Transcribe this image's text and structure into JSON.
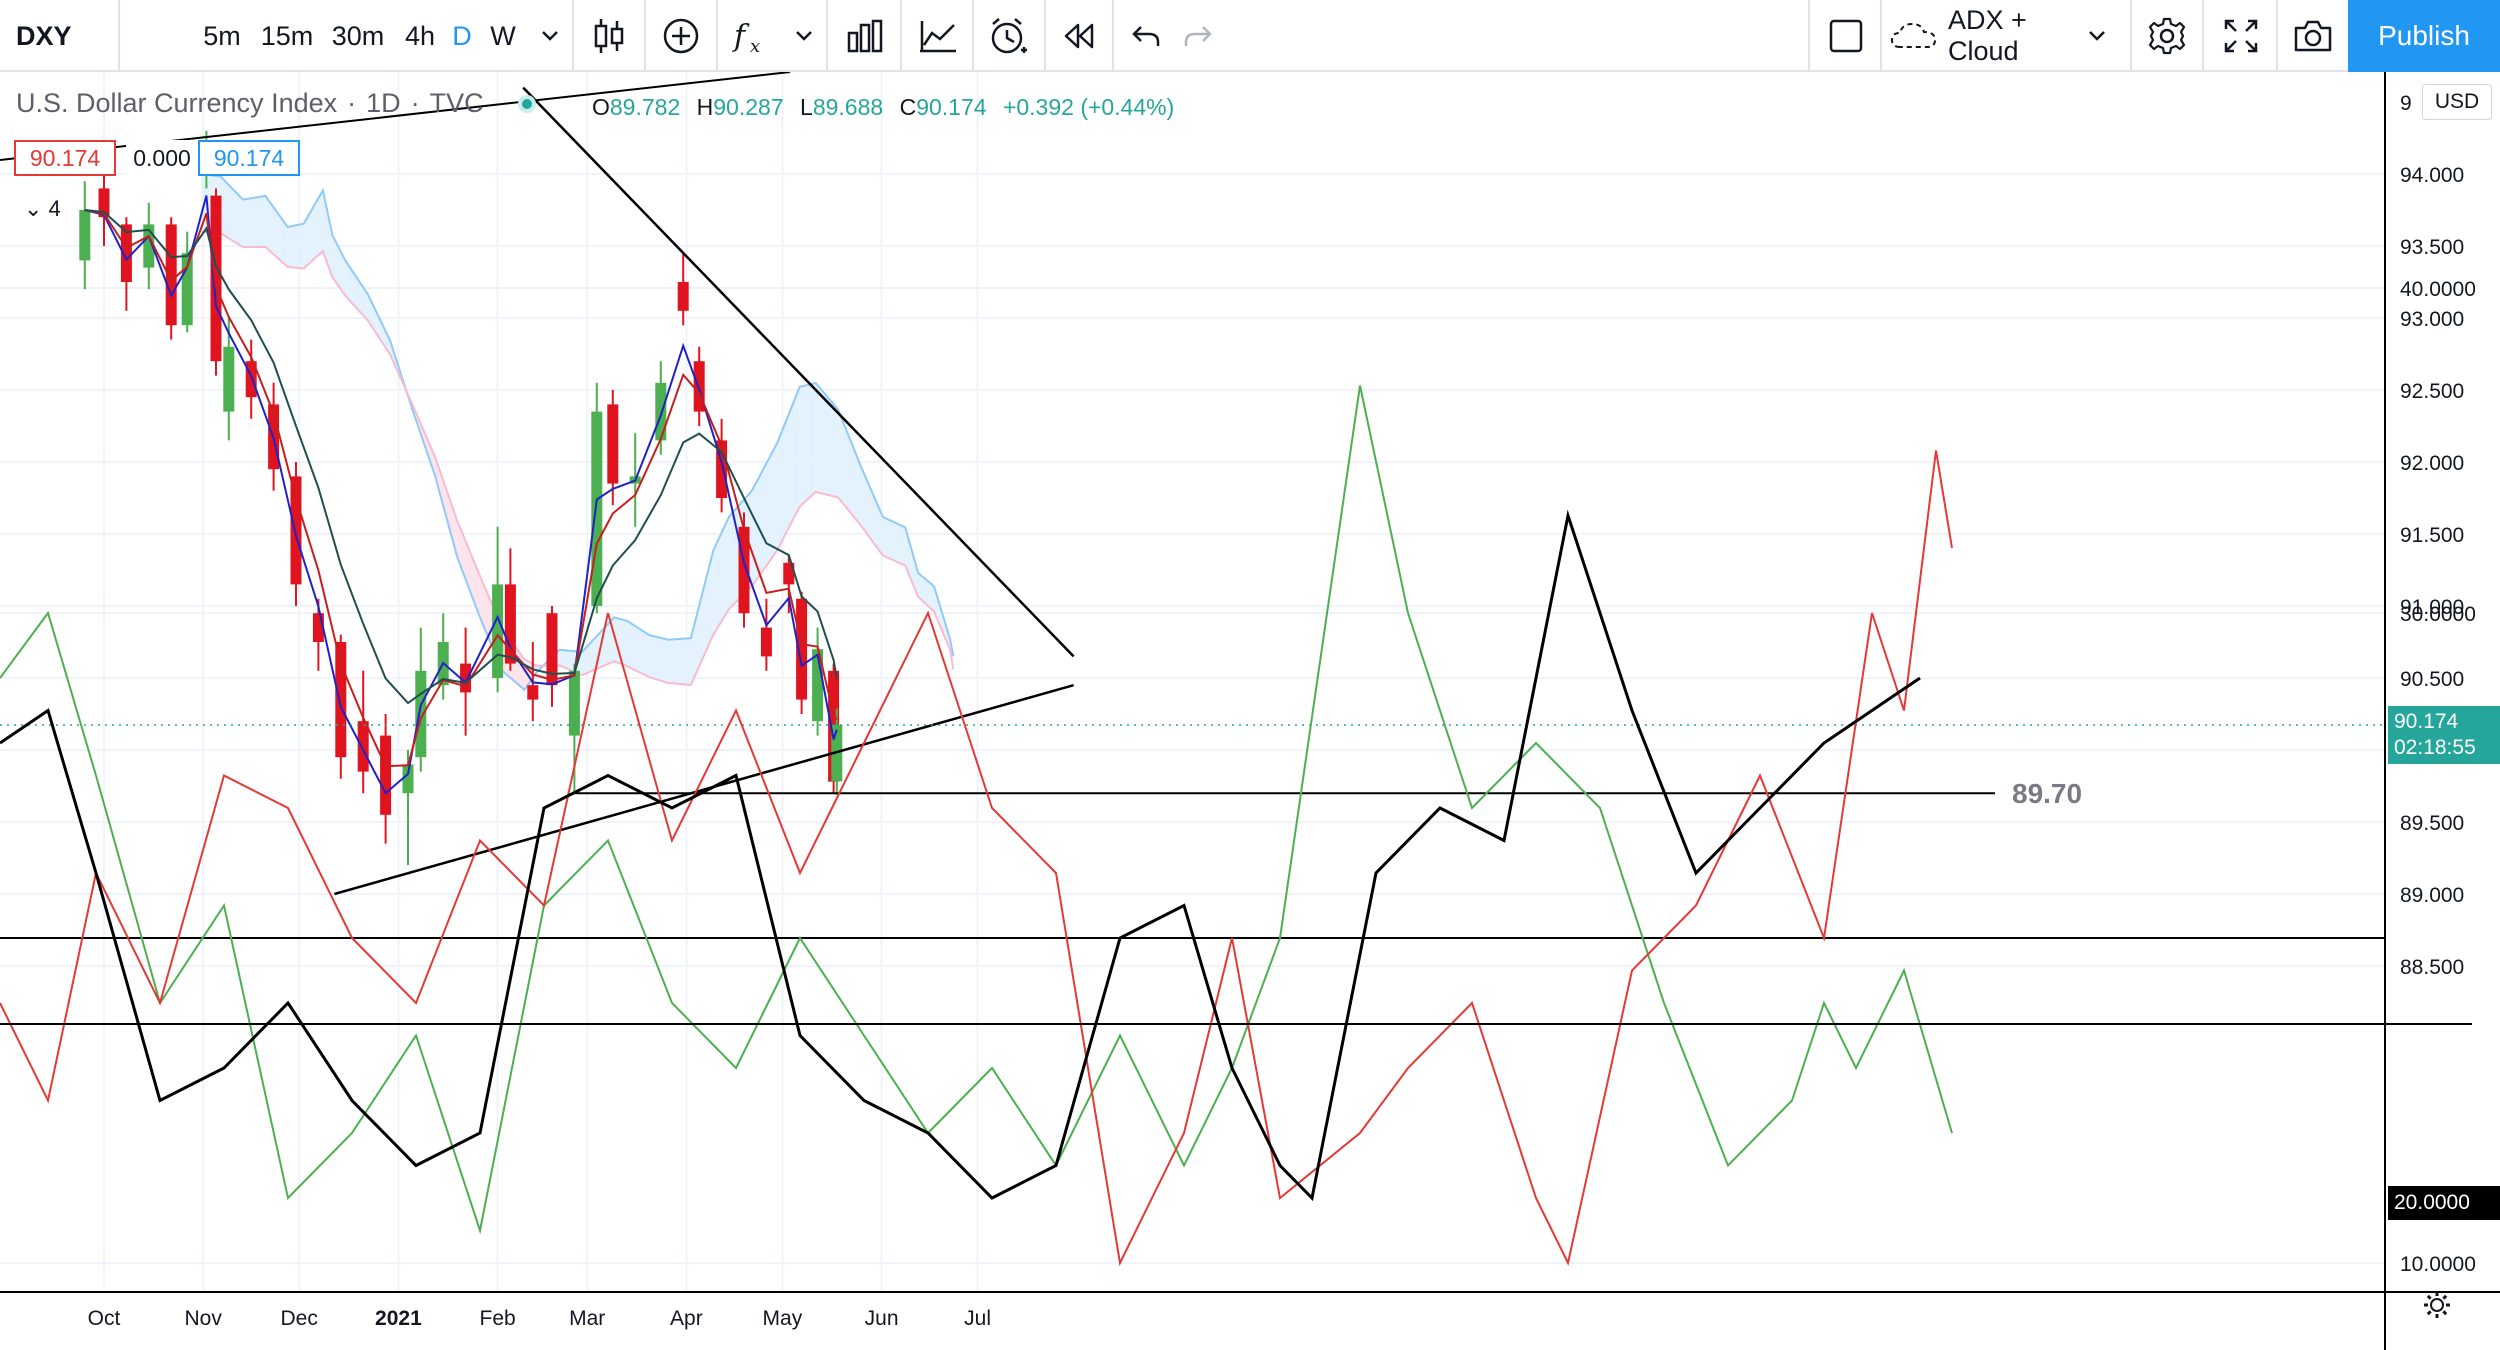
{
  "toolbar": {
    "symbol": "DXY",
    "intervals": [
      "5m",
      "15m",
      "30m",
      "4h",
      "D",
      "W"
    ],
    "active_interval": "D",
    "indicator_template": "ADX + Cloud",
    "publish_label": "Publish",
    "icons": [
      "interval-dropdown-icon",
      "candles-icon",
      "compare-add-icon",
      "indicators-fx-icon",
      "fx-dropdown-icon",
      "bar-chart-icon",
      "line-chart-icon",
      "alert-clock-icon",
      "replay-icon",
      "undo-icon",
      "redo-icon",
      "square-layout-icon",
      "cloud-save-icon",
      "template-dropdown-icon",
      "settings-gear-icon",
      "fullscreen-icon",
      "camera-snapshot-icon"
    ]
  },
  "legend": {
    "title": "U.S. Dollar Currency Index",
    "sep1": "·",
    "timeframe": "1D",
    "sep2": "·",
    "exchange": "TVC",
    "o_label": "O",
    "o_value": "89.782",
    "h_label": "H",
    "h_value": "90.287",
    "l_label": "L",
    "l_value": "89.688",
    "c_label": "C",
    "c_value": "90.174",
    "change": "+0.392 (+0.44%)",
    "bid": "90.174",
    "spread": "0.000",
    "ask": "90.174",
    "collapse_count": "4",
    "currency": "USD"
  },
  "colors": {
    "up": "#26a69a",
    "up_candle": "#4caf50",
    "down": "#e0141e",
    "accent": "#2196f3",
    "ema_fast": "#1e22c8",
    "ema_mid": "#c81e1e",
    "ema_slow": "#1f4f4f",
    "cloud_bear": "#fce4ec",
    "cloud_bull": "#e3f2fd",
    "adx": "#000000",
    "di_plus": "#4caf50",
    "di_minus": "#e53935"
  },
  "price_axis": {
    "ticks": [
      "94.000",
      "93.500",
      "93.000",
      "92.500",
      "92.000",
      "91.500",
      "91.000",
      "90.500",
      "90.000",
      "89.500",
      "89.000",
      "88.500"
    ],
    "last_price": "90.174",
    "countdown": "02:18:55",
    "top_partial": "9"
  },
  "time_axis": [
    "Oct",
    "Nov",
    "Dec",
    "2021",
    "Feb",
    "Mar",
    "Apr",
    "May",
    "Jun",
    "Jul"
  ],
  "annotations": {
    "support_label": "89.70"
  },
  "adx_axis": {
    "ticks": [
      "40.0000",
      "30.0000",
      "10.0000"
    ],
    "level_label": "20.0000"
  },
  "chart_data": {
    "type": "candlestick",
    "title": "U.S. Dollar Currency Index",
    "interval": "1D",
    "ylim": [
      88.0,
      94.6
    ],
    "candles": [
      [
        "2020-09-25",
        93.4,
        93.95,
        93.2,
        93.75
      ],
      [
        "2020-10-01",
        93.9,
        94.0,
        93.5,
        93.7
      ],
      [
        "2020-10-08",
        93.65,
        93.7,
        93.05,
        93.25
      ],
      [
        "2020-10-15",
        93.35,
        93.8,
        93.2,
        93.65
      ],
      [
        "2020-10-22",
        93.65,
        93.7,
        92.85,
        92.95
      ],
      [
        "2020-10-27",
        92.95,
        93.6,
        92.9,
        93.45
      ],
      [
        "2020-11-02",
        94.05,
        94.3,
        93.9,
        94.1
      ],
      [
        "2020-11-05",
        93.85,
        93.9,
        92.6,
        92.7
      ],
      [
        "2020-11-09",
        92.35,
        93.0,
        92.15,
        92.8
      ],
      [
        "2020-11-16",
        92.7,
        92.85,
        92.3,
        92.45
      ],
      [
        "2020-11-23",
        92.4,
        92.55,
        91.8,
        91.95
      ],
      [
        "2020-11-30",
        91.9,
        92.0,
        91.0,
        91.15
      ],
      [
        "2020-12-07",
        90.95,
        91.05,
        90.55,
        90.75
      ],
      [
        "2020-12-14",
        90.75,
        90.8,
        89.8,
        89.95
      ],
      [
        "2020-12-21",
        90.2,
        90.55,
        89.7,
        89.85
      ],
      [
        "2020-12-28",
        90.1,
        90.25,
        89.35,
        89.55
      ],
      [
        "2021-01-04",
        89.7,
        90.0,
        89.2,
        89.9
      ],
      [
        "2021-01-08",
        89.95,
        90.85,
        89.85,
        90.55
      ],
      [
        "2021-01-15",
        90.45,
        90.95,
        90.35,
        90.75
      ],
      [
        "2021-01-22",
        90.6,
        90.85,
        90.1,
        90.4
      ],
      [
        "2021-02-01",
        90.5,
        91.55,
        90.4,
        91.15
      ],
      [
        "2021-02-05",
        91.15,
        91.4,
        90.55,
        90.6
      ],
      [
        "2021-02-12",
        90.45,
        90.75,
        90.2,
        90.35
      ],
      [
        "2021-02-18",
        90.95,
        91.0,
        90.3,
        90.45
      ],
      [
        "2021-02-25",
        90.1,
        90.6,
        89.7,
        90.55
      ],
      [
        "2021-03-04",
        91.0,
        92.55,
        90.95,
        92.35
      ],
      [
        "2021-03-09",
        92.4,
        92.5,
        91.7,
        91.85
      ],
      [
        "2021-03-16",
        91.85,
        92.2,
        91.55,
        91.9
      ],
      [
        "2021-03-24",
        92.15,
        92.7,
        92.05,
        92.55
      ],
      [
        "2021-03-31",
        93.25,
        93.45,
        92.95,
        93.05
      ],
      [
        "2021-04-05",
        92.7,
        92.8,
        92.25,
        92.35
      ],
      [
        "2021-04-12",
        92.15,
        92.3,
        91.65,
        91.75
      ],
      [
        "2021-04-19",
        91.55,
        91.65,
        90.85,
        90.95
      ],
      [
        "2021-04-26",
        90.85,
        91.05,
        90.55,
        90.65
      ],
      [
        "2021-05-03",
        91.3,
        91.35,
        90.95,
        91.15
      ],
      [
        "2021-05-07",
        91.05,
        91.1,
        90.25,
        90.35
      ],
      [
        "2021-05-12",
        90.2,
        90.85,
        90.1,
        90.7
      ],
      [
        "2021-05-17",
        90.55,
        90.6,
        89.7,
        89.78
      ],
      [
        "2021-05-18",
        89.782,
        90.287,
        89.688,
        90.174
      ]
    ],
    "last": {
      "open": 89.782,
      "high": 90.287,
      "low": 89.688,
      "close": 90.174,
      "change": 0.392,
      "change_pct": 0.44
    },
    "support_level": 89.7,
    "trendlines": [
      {
        "name": "descending resistance",
        "from": [
          "2021-02-09",
          94.6
        ],
        "to": [
          "2021-07-31",
          90.65
        ]
      },
      {
        "name": "ascending support",
        "from": [
          "2020-12-12",
          89.0
        ],
        "to": [
          "2021-07-31",
          90.45
        ]
      }
    ],
    "adx_panel": {
      "ylim": [
        7,
        50
      ],
      "level": 20,
      "adx": [
        [
          0,
          26
        ],
        [
          30,
          27
        ],
        [
          60,
          22
        ],
        [
          100,
          15
        ],
        [
          140,
          16
        ],
        [
          180,
          18
        ],
        [
          220,
          15
        ],
        [
          260,
          13
        ],
        [
          300,
          14
        ],
        [
          340,
          24
        ],
        [
          380,
          25
        ],
        [
          420,
          24
        ],
        [
          460,
          25
        ],
        [
          500,
          17
        ],
        [
          540,
          15
        ],
        [
          580,
          14
        ],
        [
          620,
          12
        ],
        [
          660,
          13
        ],
        [
          700,
          20
        ],
        [
          740,
          21
        ],
        [
          770,
          16
        ],
        [
          800,
          13
        ],
        [
          820,
          12
        ],
        [
          860,
          22
        ],
        [
          900,
          24
        ],
        [
          940,
          23
        ],
        [
          980,
          33
        ],
        [
          1020,
          27
        ],
        [
          1060,
          22
        ],
        [
          1100,
          24
        ],
        [
          1140,
          26
        ],
        [
          1170,
          27
        ],
        [
          1200,
          28
        ]
      ],
      "di_plus": [
        [
          0,
          28
        ],
        [
          30,
          30
        ],
        [
          60,
          25
        ],
        [
          100,
          18
        ],
        [
          140,
          21
        ],
        [
          180,
          12
        ],
        [
          220,
          14
        ],
        [
          260,
          17
        ],
        [
          300,
          11
        ],
        [
          340,
          21
        ],
        [
          380,
          23
        ],
        [
          420,
          18
        ],
        [
          460,
          16
        ],
        [
          500,
          20
        ],
        [
          540,
          17
        ],
        [
          580,
          14
        ],
        [
          620,
          16
        ],
        [
          660,
          13
        ],
        [
          700,
          17
        ],
        [
          740,
          13
        ],
        [
          770,
          16
        ],
        [
          800,
          20
        ],
        [
          850,
          37
        ],
        [
          880,
          30
        ],
        [
          920,
          24
        ],
        [
          960,
          26
        ],
        [
          1000,
          24
        ],
        [
          1040,
          18
        ],
        [
          1080,
          13
        ],
        [
          1120,
          15
        ],
        [
          1140,
          18
        ],
        [
          1160,
          16
        ],
        [
          1190,
          19
        ],
        [
          1220,
          14
        ]
      ],
      "di_minus": [
        [
          0,
          18
        ],
        [
          30,
          15
        ],
        [
          60,
          22
        ],
        [
          100,
          18
        ],
        [
          140,
          25
        ],
        [
          180,
          24
        ],
        [
          220,
          20
        ],
        [
          260,
          18
        ],
        [
          300,
          23
        ],
        [
          340,
          21
        ],
        [
          380,
          30
        ],
        [
          420,
          23
        ],
        [
          460,
          27
        ],
        [
          500,
          22
        ],
        [
          540,
          26
        ],
        [
          580,
          30
        ],
        [
          620,
          24
        ],
        [
          660,
          22
        ],
        [
          700,
          10
        ],
        [
          740,
          14
        ],
        [
          770,
          20
        ],
        [
          800,
          12
        ],
        [
          850,
          14
        ],
        [
          880,
          16
        ],
        [
          920,
          18
        ],
        [
          960,
          12
        ],
        [
          980,
          10
        ],
        [
          1020,
          19
        ],
        [
          1060,
          21
        ],
        [
          1100,
          25
        ],
        [
          1140,
          20
        ],
        [
          1170,
          30
        ],
        [
          1190,
          27
        ],
        [
          1210,
          35
        ],
        [
          1220,
          32
        ]
      ]
    }
  }
}
